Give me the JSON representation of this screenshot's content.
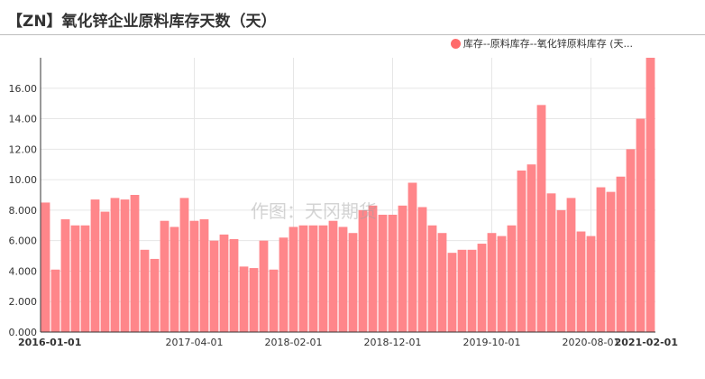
{
  "title": "【ZN】氧化锌企业原料库存天数（天）",
  "watermark": "作图：天冈期货",
  "legend": {
    "label": "库存--原料库存--氧化锌原料库存 (天...",
    "color": "#ff6b6b"
  },
  "chart_data": {
    "type": "bar",
    "title": "【ZN】氧化锌企业原料库存天数（天）",
    "series": [
      {
        "name": "库存--原料库存--氧化锌原料库存 (天...",
        "color": "#ff868a",
        "values": [
          8.5,
          4.1,
          7.4,
          7.0,
          7.0,
          8.7,
          7.9,
          8.8,
          8.7,
          9.0,
          5.4,
          4.8,
          7.3,
          6.9,
          8.8,
          7.3,
          7.4,
          6.0,
          6.4,
          6.1,
          4.3,
          4.2,
          6.0,
          4.1,
          6.2,
          6.9,
          7.0,
          7.0,
          7.0,
          7.3,
          6.9,
          6.5,
          8.0,
          8.3,
          7.7,
          7.7,
          8.3,
          9.8,
          8.2,
          7.0,
          6.5,
          5.2,
          5.4,
          5.4,
          5.8,
          6.5,
          6.3,
          7.0,
          10.6,
          11.0,
          14.9,
          9.1,
          8.0,
          8.8,
          6.6,
          6.3,
          9.5,
          9.2,
          10.2,
          12.0,
          14.0,
          18.0
        ]
      }
    ],
    "y_ticks": [
      "0.000",
      "2.000",
      "4.000",
      "6.000",
      "8.000",
      "10.00",
      "12.00",
      "14.00",
      "16.00"
    ],
    "ylim": [
      0,
      18
    ],
    "x_ticks": [
      {
        "label": "2016-01-01",
        "index": 0,
        "bold": true
      },
      {
        "label": "2017-04-01",
        "index": 15,
        "bold": false
      },
      {
        "label": "2018-02-01",
        "index": 25,
        "bold": false
      },
      {
        "label": "2018-12-01",
        "index": 35,
        "bold": false
      },
      {
        "label": "2019-10-01",
        "index": 45,
        "bold": false
      },
      {
        "label": "2020-08-01",
        "index": 55,
        "bold": false
      },
      {
        "label": "2021-02-01",
        "index": 61,
        "bold": true
      }
    ],
    "grid": true
  }
}
